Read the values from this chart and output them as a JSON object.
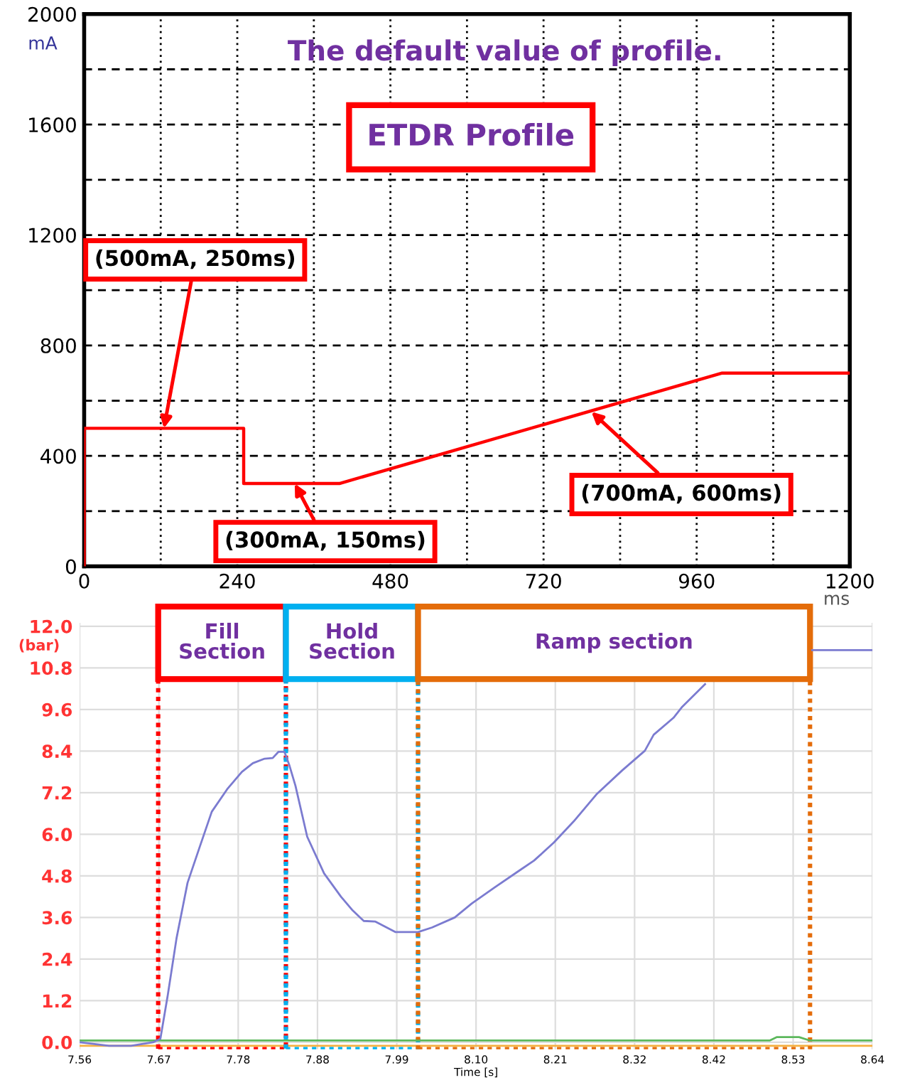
{
  "chart_data": [
    {
      "type": "line",
      "title": "The default value of profile.",
      "xlabel": "ms",
      "ylabel": "mA",
      "x": [
        0,
        0,
        250,
        250,
        400,
        1000,
        1200
      ],
      "series": [
        {
          "color": "#ff0000",
          "values": [
            0,
            500,
            500,
            300,
            300,
            700,
            700
          ]
        }
      ],
      "xlim": [
        0,
        1200
      ],
      "xticks": [
        0,
        240,
        480,
        720,
        960,
        1200
      ],
      "ylim": [
        0,
        2000
      ],
      "yticks": [
        0,
        400,
        800,
        1200,
        1600,
        2000
      ],
      "grid": true,
      "marker": "none",
      "line_style": "solid",
      "annotations": [
        "ETDR Profile",
        {
          "text": "(500mA, 250ms)",
          "x": 125,
          "y": 500
        },
        {
          "text": "(300mA, 150ms)",
          "x": 330,
          "y": 300
        },
        {
          "text": "(700mA, 600ms)",
          "x": 795,
          "y": 560
        }
      ]
    },
    {
      "type": "line",
      "xlabel": "Time [s]",
      "ylabel": "(bar)",
      "series": [
        {
          "color": "#7b7bd0",
          "x": [
            7.56,
            7.58,
            7.6,
            7.63,
            7.66,
            7.67,
            7.68,
            7.692,
            7.707,
            7.723,
            7.74,
            7.761,
            7.781,
            7.796,
            7.812,
            7.823,
            7.831,
            7.839,
            7.846,
            7.854,
            7.87,
            7.893,
            7.916,
            7.932,
            7.947,
            7.963,
            7.99,
            8.021,
            8.04,
            8.071,
            8.094,
            8.125,
            8.156,
            8.179,
            8.206,
            8.233,
            8.264,
            8.299,
            8.33,
            8.342,
            8.369,
            8.381,
            8.412,
            8.5,
            8.558,
            8.64
          ],
          "values": [
            0.0,
            -0.05,
            -0.1,
            -0.1,
            0.0,
            0.1,
            1.35,
            3.0,
            4.6,
            5.6,
            6.65,
            7.3,
            7.8,
            8.05,
            8.18,
            8.2,
            8.38,
            8.38,
            7.97,
            7.4,
            5.93,
            4.87,
            4.2,
            3.8,
            3.5,
            3.48,
            3.18,
            3.18,
            3.31,
            3.6,
            4.0,
            4.46,
            4.91,
            5.24,
            5.76,
            6.37,
            7.15,
            7.84,
            8.41,
            8.87,
            9.36,
            9.68,
            10.33,
            null,
            11.31,
            11.31
          ]
        },
        {
          "color": "#5cb85c",
          "x": [
            7.56,
            8.5,
            8.51,
            8.54,
            8.555,
            8.64
          ],
          "values": [
            0.05,
            0.05,
            0.15,
            0.15,
            0.05,
            0.05
          ]
        },
        {
          "color": "#f5b041",
          "x": [
            7.56,
            8.64
          ],
          "values": [
            -0.1,
            -0.1
          ]
        }
      ],
      "xlim": [
        7.56,
        8.64
      ],
      "xticks": [
        7.56,
        {
          "value": 7.668,
          "label": "7.67"
        },
        {
          "value": 7.776,
          "label": "7.78"
        },
        {
          "value": 7.884,
          "label": "7.88"
        },
        {
          "value": 7.992,
          "label": "7.99"
        },
        {
          "value": 8.1,
          "label": "8.10"
        },
        {
          "value": 8.208,
          "label": "8.21"
        },
        {
          "value": 8.316,
          "label": "8.32"
        },
        {
          "value": 8.424,
          "label": "8.42"
        },
        {
          "value": 8.532,
          "label": "8.53"
        },
        8.64
      ],
      "ylim": [
        -0.2,
        12.1
      ],
      "yticks": [
        {
          "value": 0,
          "label": "0.0"
        },
        1.2,
        2.4,
        3.6,
        4.8,
        {
          "value": 6,
          "label": "6.0"
        },
        7.2,
        8.4,
        9.6,
        10.8,
        {
          "value": 12,
          "label": "12.0"
        }
      ],
      "grid": true,
      "marker": "none",
      "line_style": "solid",
      "bands": [
        {
          "axis": "x",
          "from": 7.667,
          "to": 7.841,
          "label": "Fill\nSection",
          "color": "#ff0000"
        },
        {
          "axis": "x",
          "from": 7.841,
          "to": 8.021,
          "label": "Hold\nSection",
          "color": "#00b0f0"
        },
        {
          "axis": "x",
          "from": 8.021,
          "to": 8.555,
          "label": "Ramp section",
          "color": "#e46c0a"
        }
      ]
    }
  ]
}
